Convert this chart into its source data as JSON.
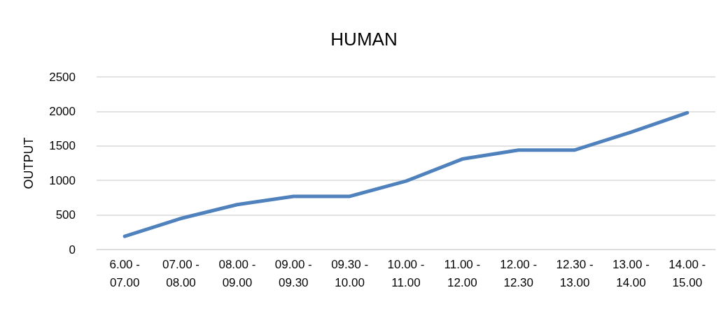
{
  "chart_data": {
    "type": "line",
    "title": "HUMAN",
    "ylabel": "OUTPUT",
    "categories": [
      "6.00 - 07.00",
      "07.00 - 08.00",
      "08.00 - 09.00",
      "09.00 - 09.30",
      "09.30 - 10.00",
      "10.00 - 11.00",
      "11.00 - 12.00",
      "12.00 - 12.30",
      "12.30 - 13.00",
      "13.00 - 14.00",
      "14.00 - 15.00"
    ],
    "values": [
      190,
      450,
      650,
      770,
      770,
      990,
      1310,
      1440,
      1440,
      1700,
      1980
    ],
    "color": "#4f81bd",
    "ylim": [
      0,
      2500
    ],
    "yticks": [
      0,
      500,
      1000,
      1500,
      2000,
      2500
    ],
    "grid": "y",
    "marker": "none",
    "line_style": "solid"
  }
}
